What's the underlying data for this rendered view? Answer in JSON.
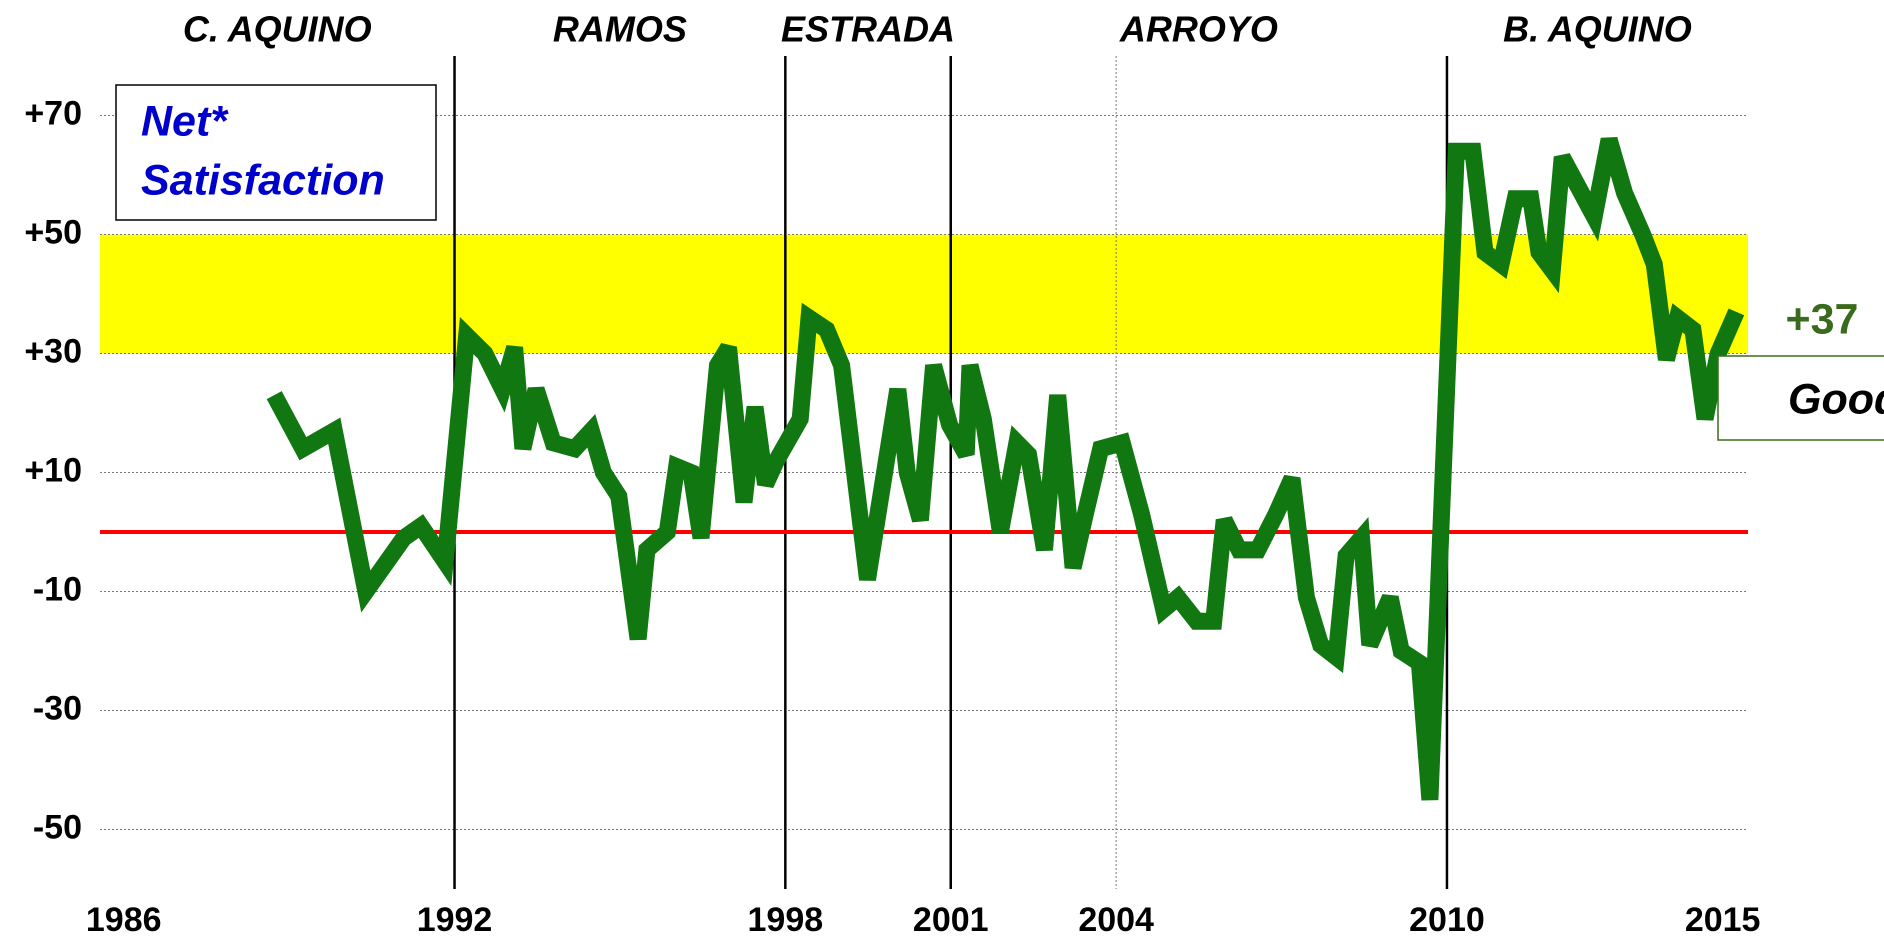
{
  "chart_data": {
    "type": "line",
    "title": [
      "Net*",
      "Satisfaction"
    ],
    "terms": [
      "C. AQUINO",
      "RAMOS",
      "ESTRADA",
      "ARROYO",
      "B. AQUINO"
    ],
    "term_lines": [
      1992,
      1998,
      2001,
      2010
    ],
    "minor_lines": [
      2004
    ],
    "band": [
      30,
      50
    ],
    "band_color": "#ffff00",
    "reference": 0,
    "reference_color": "#ff0000",
    "rating": "Good",
    "xlim": [
      1985.57,
      2015.46
    ],
    "xticks": [
      1986,
      1992,
      1998,
      2001,
      2004,
      2010,
      2015
    ],
    "ylim": [
      -60,
      80
    ],
    "yticks": [
      {
        "value": 70,
        "label": "+70"
      },
      {
        "value": 50,
        "label": "+50"
      },
      {
        "value": 30,
        "label": "+30"
      },
      {
        "value": 10,
        "label": "+10"
      },
      -10,
      -30,
      -50
    ],
    "grid": true,
    "x": [
      1988.73,
      1989.25,
      1989.82,
      1990.39,
      1991.08,
      1991.39,
      1991.83,
      1992.22,
      1992.55,
      1992.87,
      1993.09,
      1993.24,
      1993.48,
      1993.79,
      1994.18,
      1994.48,
      1994.7,
      1994.98,
      1995.33,
      1995.49,
      1995.86,
      1996.03,
      1996.29,
      1996.47,
      1996.77,
      1996.97,
      1997.25,
      1997.45,
      1997.64,
      1997.84,
      1998.27,
      1998.43,
      1998.75,
      1999.02,
      1999.49,
      2000.04,
      2000.21,
      2000.45,
      2000.69,
      2000.98,
      2001.28,
      2001.35,
      2001.59,
      2001.9,
      2002.2,
      2002.41,
      2002.7,
      2002.94,
      2003.22,
      2003.44,
      2003.72,
      2004.11,
      2004.46,
      2004.86,
      2005.12,
      2005.46,
      2005.77,
      2005.96,
      2006.23,
      2006.57,
      2006.9,
      2007.19,
      2007.45,
      2007.71,
      2007.99,
      2008.17,
      2008.45,
      2008.6,
      2008.97,
      2009.17,
      2009.5,
      2009.69,
      2010.17,
      2010.47,
      2010.69,
      2010.98,
      2011.24,
      2011.52,
      2011.67,
      2011.91,
      2012.09,
      2012.67,
      2012.94,
      2013.22,
      2013.55,
      2013.76,
      2013.98,
      2014.18,
      2014.46,
      2014.68,
      2014.92,
      2015.25
    ],
    "series": [
      {
        "name": "Net* Satisfaction",
        "color": "#117711",
        "values": [
          23,
          14,
          17,
          -10,
          -1,
          1,
          -5,
          33,
          30,
          24,
          31,
          14,
          24,
          15,
          14,
          17,
          10,
          6,
          -18,
          -3,
          0,
          11,
          10,
          -1,
          28,
          31,
          5,
          21,
          8,
          12,
          19,
          36,
          34,
          28,
          -8,
          24,
          10,
          2,
          28,
          18,
          13,
          28,
          19,
          0,
          15,
          13,
          -3,
          23,
          -6,
          3,
          14,
          15,
          3,
          -13,
          -11,
          -15,
          -15,
          2,
          -3,
          -3,
          3,
          9,
          -11,
          -19,
          -21,
          -4,
          -1,
          -19,
          -11,
          -20,
          -22,
          -45,
          64,
          64,
          47,
          45,
          56,
          56,
          47,
          44,
          63,
          53,
          66,
          57,
          50,
          45,
          29,
          36,
          34,
          19,
          30,
          37
        ],
        "value_labels": [
          null,
          null,
          null,
          null,
          null,
          null,
          null,
          null,
          null,
          null,
          null,
          null,
          null,
          null,
          null,
          null,
          null,
          null,
          null,
          null,
          null,
          null,
          null,
          null,
          null,
          null,
          null,
          null,
          null,
          null,
          null,
          null,
          null,
          null,
          null,
          null,
          null,
          null,
          null,
          null,
          null,
          null,
          null,
          null,
          null,
          null,
          null,
          null,
          null,
          null,
          null,
          null,
          null,
          null,
          null,
          null,
          null,
          null,
          null,
          null,
          null,
          null,
          null,
          null,
          null,
          null,
          null,
          null,
          null,
          null,
          null,
          null,
          null,
          null,
          null,
          null,
          null,
          null,
          null,
          null,
          null,
          null,
          null,
          null,
          null,
          null,
          null,
          null,
          null,
          null,
          null,
          "+37"
        ]
      }
    ]
  }
}
